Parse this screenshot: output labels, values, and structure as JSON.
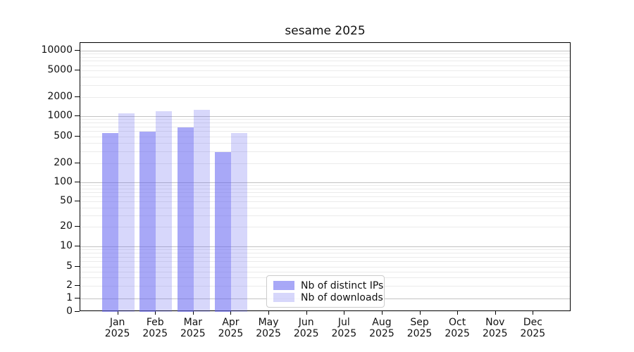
{
  "title": "sesame 2025",
  "chart_data": {
    "type": "bar",
    "title": "sesame 2025",
    "yscale": "symlog",
    "ylim": [
      0,
      13000
    ],
    "grid": "both",
    "legend_location": "lower center",
    "y_ticks": [
      0,
      1,
      2,
      5,
      10,
      20,
      50,
      100,
      200,
      500,
      1000,
      2000,
      5000,
      10000
    ],
    "categories": [
      {
        "label": "Jan",
        "sublabel": "2025"
      },
      {
        "label": "Feb",
        "sublabel": "2025"
      },
      {
        "label": "Mar",
        "sublabel": "2025"
      },
      {
        "label": "Apr",
        "sublabel": "2025"
      },
      {
        "label": "May",
        "sublabel": "2025"
      },
      {
        "label": "Jun",
        "sublabel": "2025"
      },
      {
        "label": "Jul",
        "sublabel": "2025"
      },
      {
        "label": "Aug",
        "sublabel": "2025"
      },
      {
        "label": "Sep",
        "sublabel": "2025"
      },
      {
        "label": "Oct",
        "sublabel": "2025"
      },
      {
        "label": "Nov",
        "sublabel": "2025"
      },
      {
        "label": "Dec",
        "sublabel": "2025"
      }
    ],
    "series": [
      {
        "name": "Nb of distinct IPs",
        "color": "rgba(97,97,240,0.55)",
        "values": [
          560,
          590,
          680,
          295,
          null,
          null,
          null,
          null,
          null,
          null,
          null,
          null
        ]
      },
      {
        "name": "Nb of downloads",
        "color": "rgba(97,97,240,0.25)",
        "values": [
          1120,
          1180,
          1260,
          560,
          null,
          null,
          null,
          null,
          null,
          null,
          null,
          null
        ]
      }
    ]
  }
}
